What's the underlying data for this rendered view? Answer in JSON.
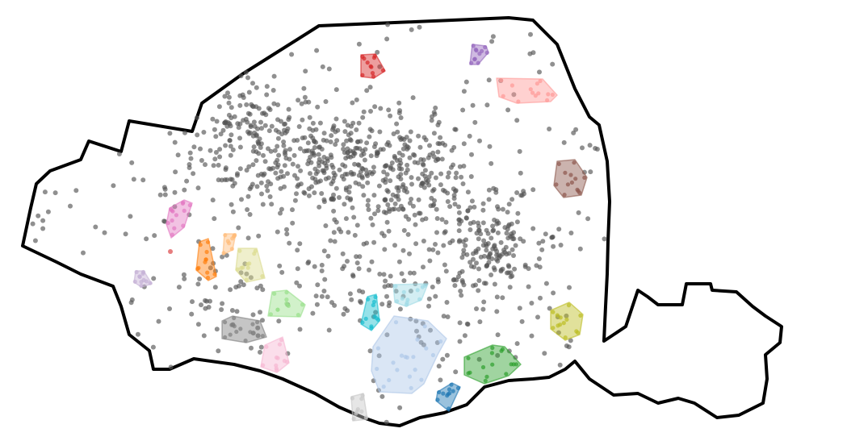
{
  "map": {
    "boundary_stroke": "#000000",
    "background": "#ffffff",
    "noise_point_color": "#555555",
    "noise_point_opacity": 0.65,
    "cluster_fill_opacity": 0.45,
    "cluster_point_opacity": 0.7
  },
  "clusters": [
    {
      "id": "red",
      "color": "#d62728"
    },
    {
      "id": "purple",
      "color": "#9467bd"
    },
    {
      "id": "salmon",
      "color": "#ff9896"
    },
    {
      "id": "brown",
      "color": "#8c564b"
    },
    {
      "id": "pink",
      "color": "#e377c2"
    },
    {
      "id": "orange",
      "color": "#ff7f0e"
    },
    {
      "id": "light-orange",
      "color": "#ffbb78"
    },
    {
      "id": "olive-light",
      "color": "#dbdb8d"
    },
    {
      "id": "lavender",
      "color": "#c5b0d5"
    },
    {
      "id": "light-green",
      "color": "#98df8a"
    },
    {
      "id": "cyan",
      "color": "#17becf"
    },
    {
      "id": "light-cyan",
      "color": "#9edae5"
    },
    {
      "id": "gray",
      "color": "#7f7f7f"
    },
    {
      "id": "light-pink",
      "color": "#f7b6d2"
    },
    {
      "id": "light-blue",
      "color": "#aec7e8"
    },
    {
      "id": "green",
      "color": "#2ca02c"
    },
    {
      "id": "blue",
      "color": "#1f77b4"
    },
    {
      "id": "olive",
      "color": "#bcbd22"
    },
    {
      "id": "light-gray",
      "color": "#c7c7c7"
    }
  ]
}
